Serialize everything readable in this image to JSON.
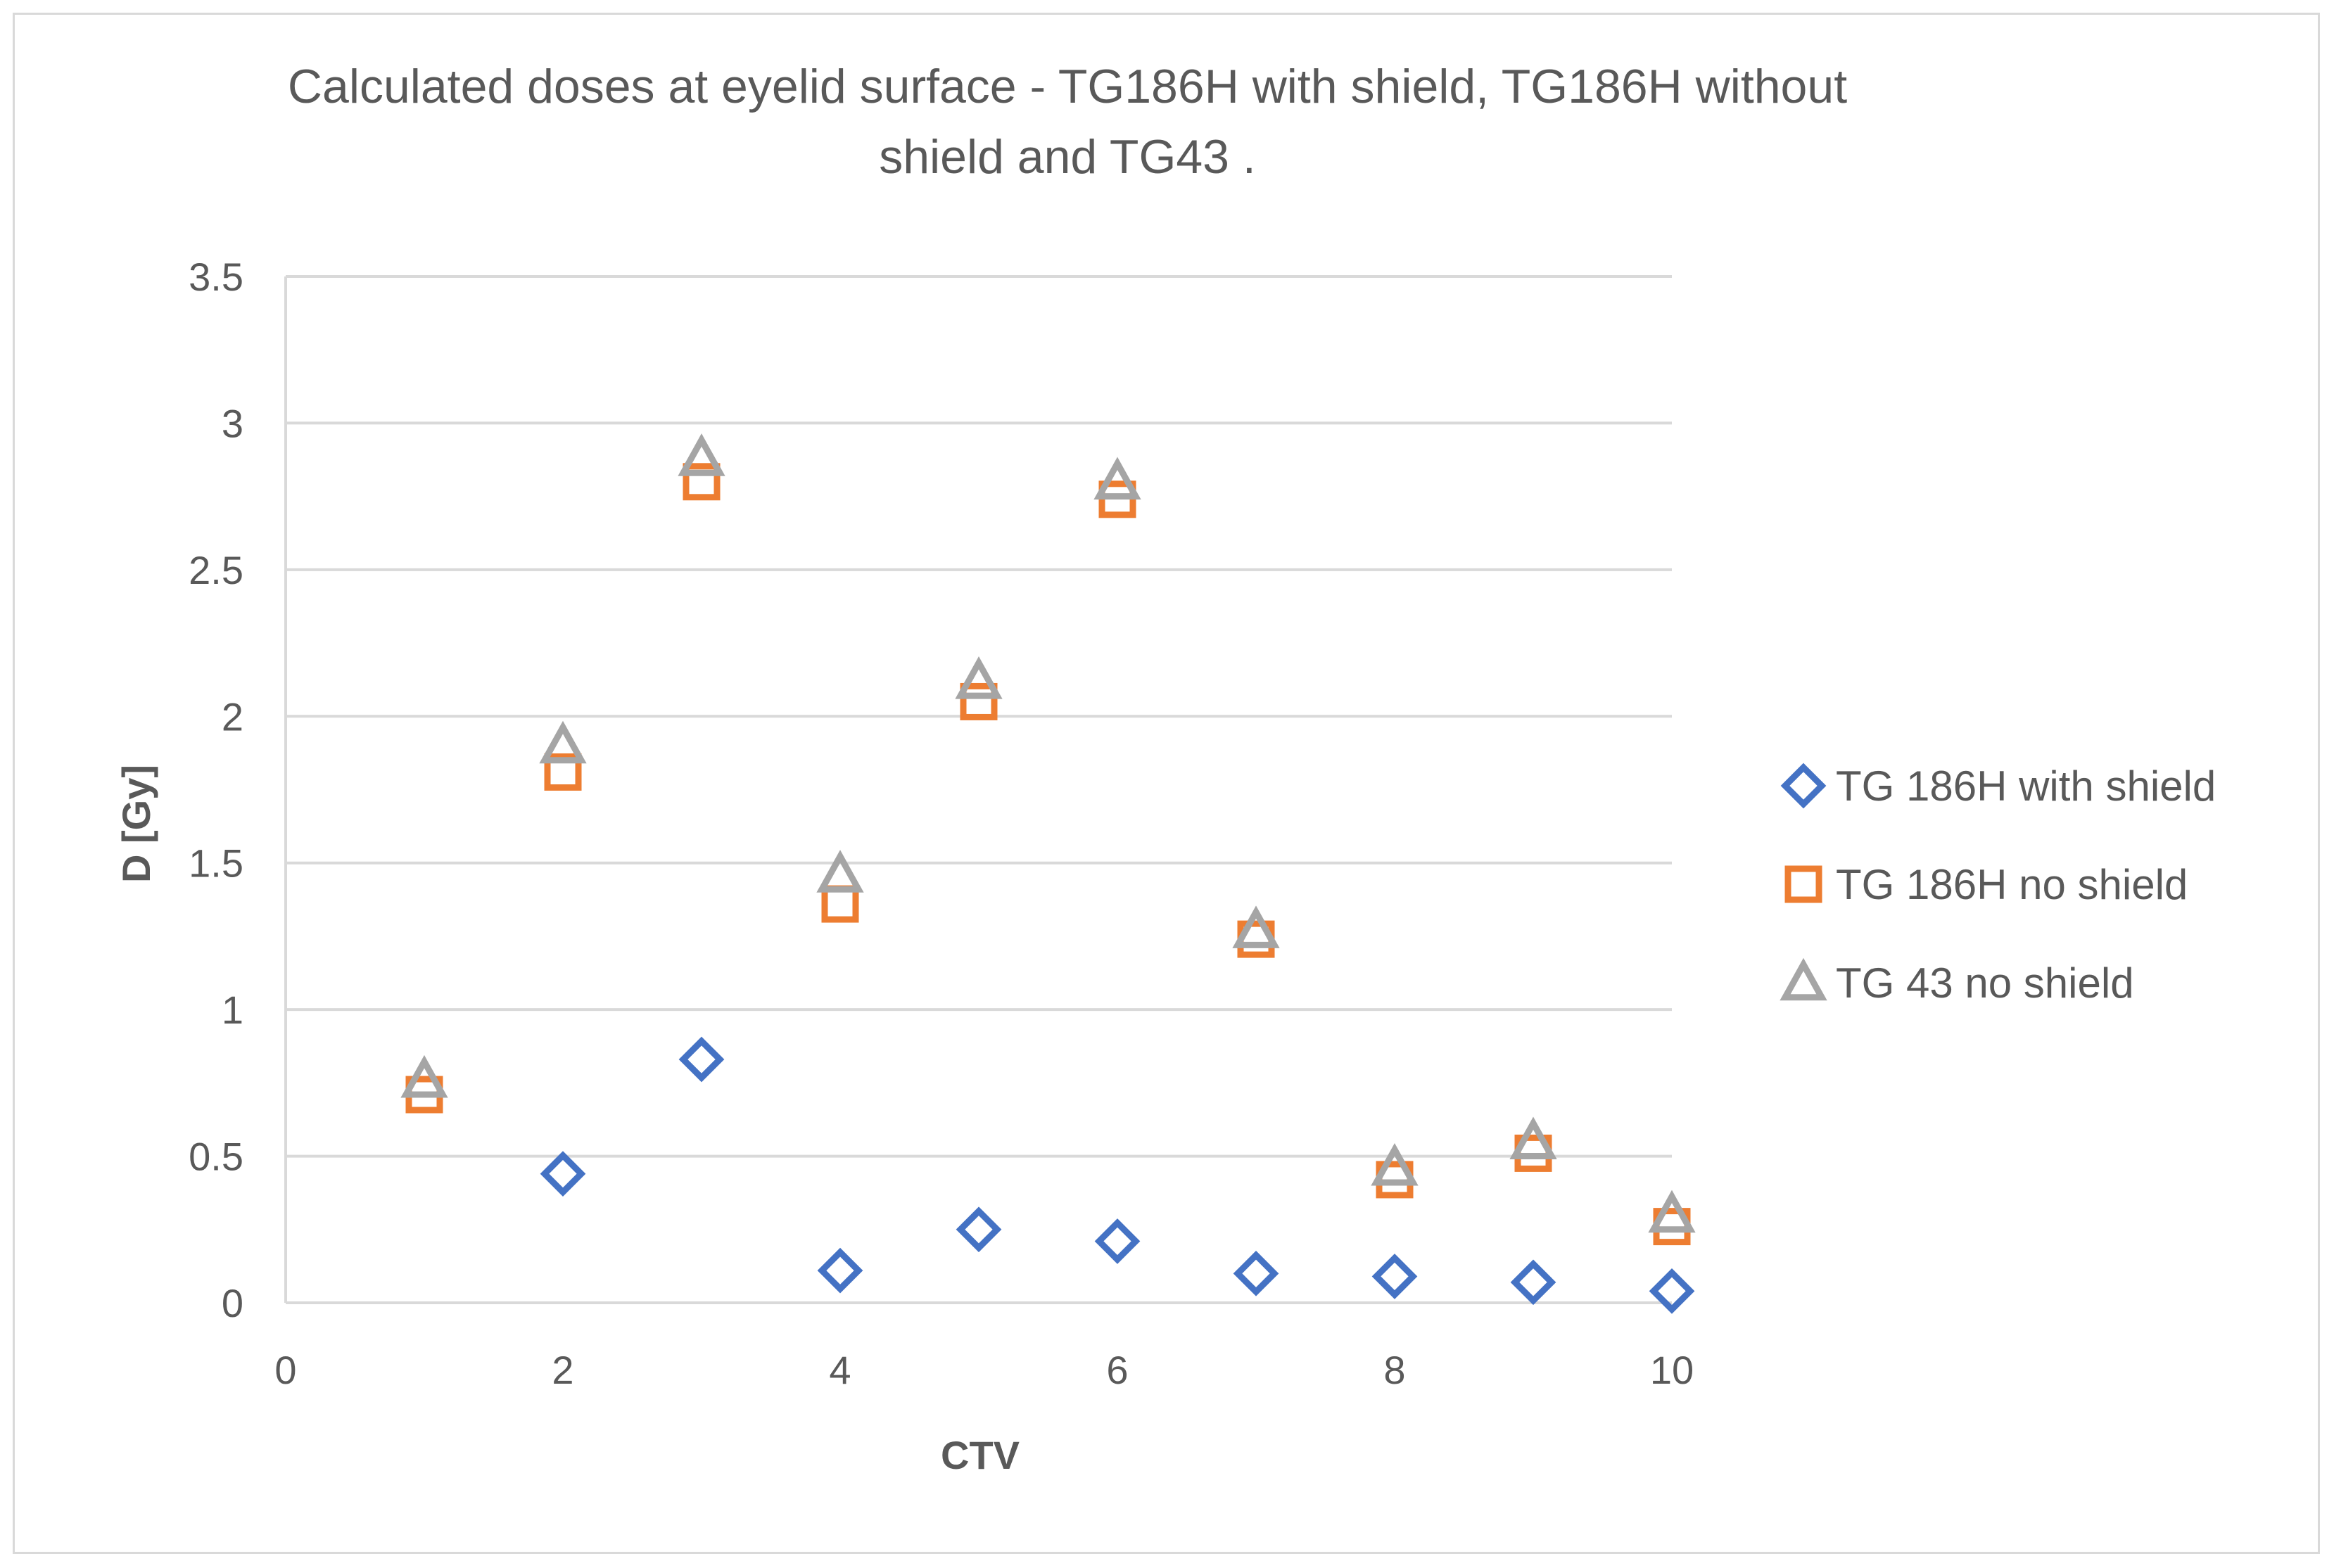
{
  "chart_data": {
    "type": "scatter",
    "title": "Calculated doses at eyelid surface - TG186H with shield, TG186H without shield and TG43 .",
    "title_lines": [
      "Calculated doses at eyelid surface - TG186H with shield, TG186H without",
      "shield and TG43 ."
    ],
    "xlabel": "CTV",
    "ylabel": "D [Gy]",
    "xlim": [
      0,
      10
    ],
    "ylim": [
      0,
      3.5
    ],
    "xticks": [
      0,
      2,
      4,
      6,
      8,
      10
    ],
    "yticks": [
      0,
      0.5,
      1,
      1.5,
      2,
      2.5,
      3,
      3.5
    ],
    "xtick_labels": [
      "0",
      "2",
      "4",
      "6",
      "8",
      "10"
    ],
    "ytick_labels": [
      "0",
      "0.5",
      "1",
      "1.5",
      "2",
      "2.5",
      "3",
      "3.5"
    ],
    "grid": "horizontal",
    "legend_position": "right",
    "series": [
      {
        "name": "TG 186H with shield",
        "marker": "diamond",
        "color": "#4472c4",
        "x": [
          2,
          3,
          4,
          5,
          6,
          7,
          8,
          9,
          10
        ],
        "y": [
          0.44,
          0.83,
          0.11,
          0.25,
          0.21,
          0.1,
          0.09,
          0.07,
          0.04
        ]
      },
      {
        "name": "TG 186H no shield",
        "marker": "square",
        "color": "#ed7d31",
        "x": [
          1,
          2,
          3,
          4,
          5,
          6,
          7,
          8,
          9,
          10
        ],
        "y": [
          0.71,
          1.81,
          2.8,
          1.36,
          2.05,
          2.74,
          1.24,
          0.42,
          0.51,
          0.26
        ]
      },
      {
        "name": "TG 43 no shield",
        "marker": "triangle",
        "color": "#a5a5a5",
        "x": [
          1,
          2,
          3,
          4,
          5,
          6,
          7,
          8,
          9,
          10
        ],
        "y": [
          0.76,
          1.9,
          2.88,
          1.46,
          2.12,
          2.8,
          1.27,
          0.46,
          0.55,
          0.3
        ]
      }
    ]
  }
}
